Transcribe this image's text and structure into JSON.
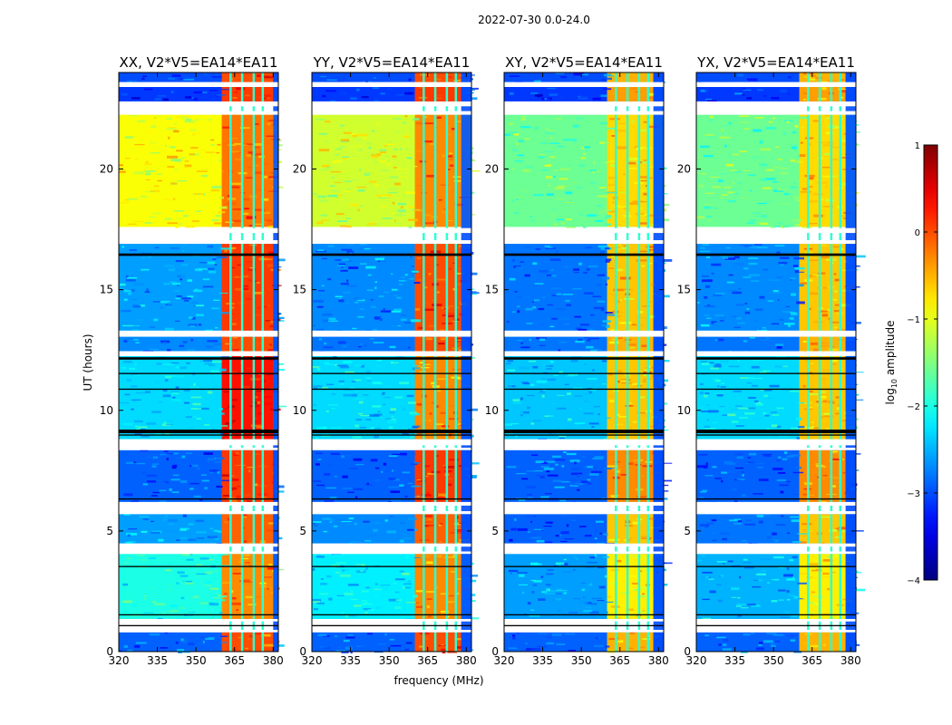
{
  "figure": {
    "suptitle": "2022-07-30 0.0-24.0",
    "xlabel": "frequency (MHz)",
    "ylabel": "UT (hours)"
  },
  "chart_data": {
    "type": "heatmap",
    "x_range_mhz": [
      320,
      382
    ],
    "y_range_hours": [
      0,
      24
    ],
    "x_ticks": [
      320,
      335,
      350,
      365,
      380
    ],
    "y_ticks": [
      0,
      5,
      10,
      15,
      20
    ],
    "rfi_band_mhz": [
      360,
      380
    ],
    "rfi_channel_gaps_mhz": [
      363,
      367.5,
      372,
      375.5
    ],
    "panels": [
      {
        "title": "XX, V2*V5=EA14*EA11",
        "right_band_edge_mhz": 380
      },
      {
        "title": "YY, V2*V5=EA14*EA11",
        "right_band_edge_mhz": 378
      },
      {
        "title": "XY, V2*V5=EA14*EA11",
        "right_band_edge_mhz": 378
      },
      {
        "title": "YX, V2*V5=EA14*EA11",
        "right_band_edge_mhz": 378
      }
    ],
    "flagged_gaps_hours": [
      [
        23.4,
        23.6
      ],
      [
        22.6,
        22.8
      ],
      [
        22.25,
        22.4
      ],
      [
        17.35,
        17.55
      ],
      [
        16.9,
        17.05
      ],
      [
        13.05,
        13.3
      ],
      [
        12.25,
        12.45
      ],
      [
        8.55,
        8.8
      ],
      [
        8.35,
        8.45
      ],
      [
        6.05,
        6.2
      ],
      [
        5.7,
        5.82
      ],
      [
        4.35,
        4.48
      ],
      [
        4.05,
        4.15
      ],
      [
        1.25,
        1.35
      ],
      [
        0.8,
        0.9
      ]
    ],
    "black_lines_hours": [
      [
        16.4,
        16.5
      ],
      [
        12.1,
        12.2
      ],
      [
        11.5,
        11.55
      ],
      [
        10.85,
        10.9
      ],
      [
        9.05,
        9.2
      ],
      [
        8.95,
        9.0
      ],
      [
        6.3,
        6.35
      ],
      [
        3.5,
        3.55
      ],
      [
        1.5,
        1.55
      ],
      [
        1.05,
        1.1
      ]
    ],
    "intensity_segments": [
      {
        "from_h": 23.6,
        "to_h": 24.0,
        "bg": [
          -3.0,
          -3.0,
          -3.0,
          -3.0
        ],
        "rfi": [
          0.0,
          0.0,
          -0.5,
          -0.5
        ]
      },
      {
        "from_h": 22.8,
        "to_h": 23.4,
        "bg": [
          -3.1,
          -3.1,
          -3.1,
          -3.1
        ],
        "rfi": [
          0.1,
          0.1,
          -0.4,
          -0.4
        ]
      },
      {
        "from_h": 17.6,
        "to_h": 22.25,
        "bg": [
          -0.9,
          -1.1,
          -1.6,
          -1.6
        ],
        "rfi": [
          -0.2,
          -0.3,
          -0.7,
          -0.7
        ]
      },
      {
        "from_h": 13.3,
        "to_h": 16.9,
        "bg": [
          -2.6,
          -2.7,
          -2.8,
          -2.7
        ],
        "rfi": [
          0.1,
          0.0,
          -0.6,
          -0.6
        ]
      },
      {
        "from_h": 12.45,
        "to_h": 13.05,
        "bg": [
          -2.7,
          -2.8,
          -2.8,
          -2.8
        ],
        "rfi": [
          0.0,
          0.0,
          -0.5,
          -0.5
        ]
      },
      {
        "from_h": 8.8,
        "to_h": 12.25,
        "bg": [
          -2.3,
          -2.3,
          -2.4,
          -2.3
        ],
        "rfi": [
          0.3,
          -0.3,
          -0.6,
          -0.6
        ]
      },
      {
        "from_h": 6.2,
        "to_h": 8.35,
        "bg": [
          -2.9,
          -2.9,
          -2.9,
          -2.9
        ],
        "rfi": [
          0.1,
          0.1,
          -0.3,
          -0.3
        ]
      },
      {
        "from_h": 4.48,
        "to_h": 5.7,
        "bg": [
          -2.6,
          -2.7,
          -2.9,
          -2.8
        ],
        "rfi": [
          -0.1,
          -0.1,
          -0.6,
          -0.6
        ]
      },
      {
        "from_h": 1.35,
        "to_h": 4.05,
        "bg": [
          -2.0,
          -2.2,
          -2.6,
          -2.5
        ],
        "rfi": [
          -0.3,
          -0.3,
          -0.8,
          -0.8
        ]
      },
      {
        "from_h": 0.0,
        "to_h": 0.8,
        "bg": [
          -2.9,
          -2.9,
          -2.9,
          -2.9
        ],
        "rfi": [
          0.0,
          0.0,
          -0.5,
          -0.5
        ]
      }
    ],
    "colorbar": {
      "label_text": "amplitude",
      "log_prefix": "log",
      "log_subscript": "10",
      "min": -4,
      "max": 1,
      "ticks": [
        1,
        0,
        -1,
        -2,
        -3,
        -4
      ],
      "tick_labels": [
        "1",
        "0",
        "−1",
        "−2",
        "−3",
        "−4"
      ],
      "colormap": "jet"
    }
  }
}
